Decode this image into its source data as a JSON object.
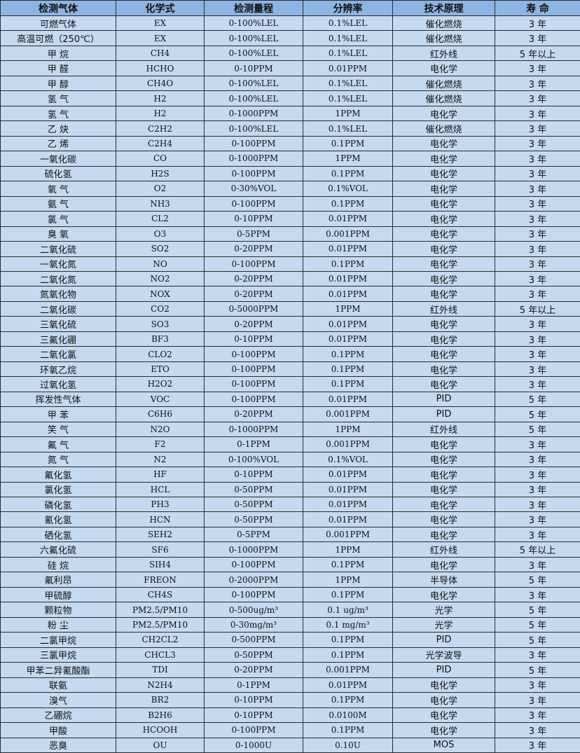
{
  "colors": {
    "header_bg": "#8db4e2",
    "row_bg": "#c5d9f1",
    "border": "#2b2b2b"
  },
  "headers": [
    "检测气体",
    "化学式",
    "检测量程",
    "分辨率",
    "技术原理",
    "寿 命"
  ],
  "rows": [
    [
      "可燃气体",
      "EX",
      "0-100%LEL",
      "0.1%LEL",
      "催化燃烧",
      "3 年"
    ],
    [
      "高温可燃（250℃）",
      "EX",
      "0-100%LEL",
      "0.1%LEL",
      "催化燃烧",
      "3 年"
    ],
    [
      "甲 烷",
      "CH4",
      "0-100%LEL",
      "0.1%LEL",
      "红外线",
      "5 年以上"
    ],
    [
      "甲 醛",
      "HCHO",
      "0-10PPM",
      "0.01PPM",
      "电化学",
      "3 年"
    ],
    [
      "甲 醇",
      "CH4O",
      "0-100%LEL",
      "0.1%LEL",
      "催化燃烧",
      "3 年"
    ],
    [
      "氢 气",
      "H2",
      "0-100%LEL",
      "0.1%LEL",
      "催化燃烧",
      "3 年"
    ],
    [
      "氢 气",
      "H2",
      "0-1000PPM",
      "1PPM",
      "电化学",
      "3 年"
    ],
    [
      "乙 炔",
      "C2H2",
      "0-100%LEL",
      "0.1%LEL",
      "催化燃烧",
      "3 年"
    ],
    [
      "乙 烯",
      "C2H4",
      "0-100PPM",
      "0.1PPM",
      "电化学",
      "3 年"
    ],
    [
      "一氧化碳",
      "CO",
      "0-1000PPM",
      "1PPM",
      "电化学",
      "3 年"
    ],
    [
      "硫化氢",
      "H2S",
      "0-100PPM",
      "0.1PPM",
      "电化学",
      "3 年"
    ],
    [
      "氧 气",
      "O2",
      "0-30%VOL",
      "0.1%VOL",
      "电化学",
      "3 年"
    ],
    [
      "氨 气",
      "NH3",
      "0-100PPM",
      "0.1PPM",
      "电化学",
      "3 年"
    ],
    [
      "氯 气",
      "CL2",
      "0-10PPM",
      "0.01PPM",
      "电化学",
      "3 年"
    ],
    [
      "臭 氧",
      "O3",
      "0-5PPM",
      "0.001PPM",
      "电化学",
      "3 年"
    ],
    [
      "二氧化硫",
      "SO2",
      "0-20PPM",
      "0.01PPM",
      "电化学",
      "3 年"
    ],
    [
      "一氧化氮",
      "NO",
      "0-100PPM",
      "0.1PPM",
      "电化学",
      "3 年"
    ],
    [
      "二氧化氮",
      "NO2",
      "0-20PPM",
      "0.01PPM",
      "电化学",
      "3 年"
    ],
    [
      "氮氧化物",
      "NOX",
      "0-20PPM",
      "0.01PPM",
      "电化学",
      "3 年"
    ],
    [
      "二氧化碳",
      "CO2",
      "0-5000PPM",
      "1PPM",
      "红外线",
      "5 年以上"
    ],
    [
      "三氧化硫",
      "SO3",
      "0-20PPM",
      "0.01PPM",
      "电化学",
      "3 年"
    ],
    [
      "三氟化硼",
      "BF3",
      "0-10PPM",
      "0.01PPM",
      "电化学",
      "3 年"
    ],
    [
      "二氧化氯",
      "CLO2",
      "0-100PPM",
      "0.1PPM",
      "电化学",
      "3 年"
    ],
    [
      "环氧乙烷",
      "ETO",
      "0-100PPM",
      "0.1PPM",
      "电化学",
      "3 年"
    ],
    [
      "过氧化氢",
      "H2O2",
      "0-100PPM",
      "0.1PPM",
      "电化学",
      "3 年"
    ],
    [
      "挥发性气体",
      "VOC",
      "0-100PPM",
      "0.01PPM",
      "PID",
      "5 年"
    ],
    [
      "甲 苯",
      "C6H6",
      "0-20PPM",
      "0.001PPM",
      "PID",
      "5 年"
    ],
    [
      "笑 气",
      "N2O",
      "0-1000PPM",
      "1PPM",
      "红外线",
      "5 年"
    ],
    [
      "氟 气",
      "F2",
      "0-1PPM",
      "0.001PPM",
      "电化学",
      "3 年"
    ],
    [
      "氮 气",
      "N2",
      "0-100%VOL",
      "0.1%VOL",
      "电化学",
      "3 年"
    ],
    [
      "氟化氢",
      "HF",
      "0-10PPM",
      "0.01PPM",
      "电化学",
      "3 年"
    ],
    [
      "氯化氢",
      "HCL",
      "0-50PPM",
      "0.01PPM",
      "电化学",
      "3 年"
    ],
    [
      "磷化氢",
      "PH3",
      "0-50PPM",
      "0.01PPM",
      "电化学",
      "3 年"
    ],
    [
      "氰化氢",
      "HCN",
      "0-50PPM",
      "0.01PPM",
      "电化学",
      "3 年"
    ],
    [
      "硒化氢",
      "SEH2",
      "0-5PPM",
      "0.001PPM",
      "电化学",
      "3 年"
    ],
    [
      "六氟化硫",
      "SF6",
      "0-1000PPM",
      "1PPM",
      "红外线",
      "5 年以上"
    ],
    [
      "硅 烷",
      "SIH4",
      "0-100PPM",
      "0.1PPM",
      "电化学",
      "3 年"
    ],
    [
      "氟利昂",
      "FREON",
      "0-2000PPM",
      "1PPM",
      "半导体",
      "5 年"
    ],
    [
      "甲硫醇",
      "CH4S",
      "0-100PPM",
      "0.1PPM",
      "电化学",
      "3 年"
    ],
    [
      "颗粒物",
      "PM2.5/PM10",
      "0-500ug/m³",
      "0.1 ug/m³",
      "光学",
      "5 年"
    ],
    [
      "粉 尘",
      "PM2.5/PM10",
      "0-30mg/m³",
      "0.1 mg/m³",
      "光学",
      "5 年"
    ],
    [
      "二氯甲烷",
      "CH2CL2",
      "0-500PPM",
      "0.1PPM",
      "PID",
      "5 年"
    ],
    [
      "三氯甲烷",
      "CHCL3",
      "0-50PPM",
      "0.1PPM",
      "光学波导",
      "3 年"
    ],
    [
      "甲苯二异氰酸酯",
      "TDI",
      "0-20PPM",
      "0.001PPM",
      "PID",
      "5 年"
    ],
    [
      "联氨",
      "N2H4",
      "0-1PPM",
      "0.01PPM",
      "电化学",
      "3 年"
    ],
    [
      "溴气",
      "BR2",
      "0-10PPM",
      "0.1PPM",
      "电化学",
      "3 年"
    ],
    [
      "乙硼烷",
      "B2H6",
      "0-10PPM",
      "0.0100M",
      "电化学",
      "3 年"
    ],
    [
      "甲酸",
      "HCOOH",
      "0-100PPM",
      "0.1PPM",
      "电化学",
      "3 年"
    ],
    [
      "恶臭",
      "OU",
      "0-1000U",
      "0.10U",
      "MOS",
      "3 年"
    ]
  ]
}
